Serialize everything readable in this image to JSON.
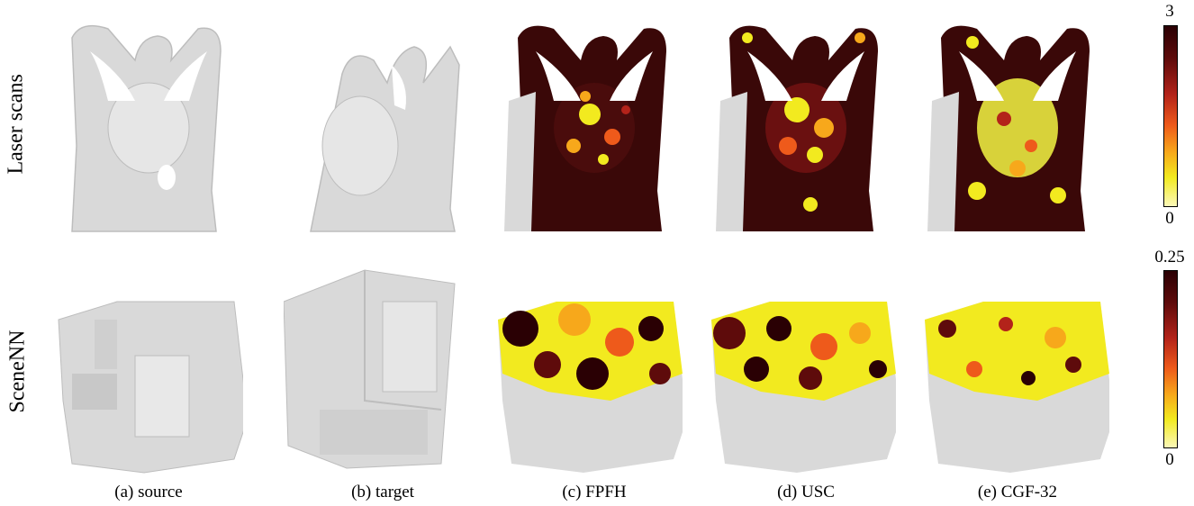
{
  "rows": [
    "Laser scans",
    "SceneNN"
  ],
  "captions": [
    "(a) source",
    "(b) target",
    "(c) FPFH",
    "(d) USC",
    "(e) CGF-32"
  ],
  "colorbars": [
    {
      "max": "3",
      "min": "0"
    },
    {
      "max": "0.25",
      "min": "0"
    }
  ],
  "colormap": [
    "#fffde0",
    "#f2ea1f",
    "#f7a81b",
    "#ee5a1b",
    "#b3231a",
    "#5e0b0b",
    "#2a0004"
  ],
  "mesh_color": "#d9d9d9"
}
